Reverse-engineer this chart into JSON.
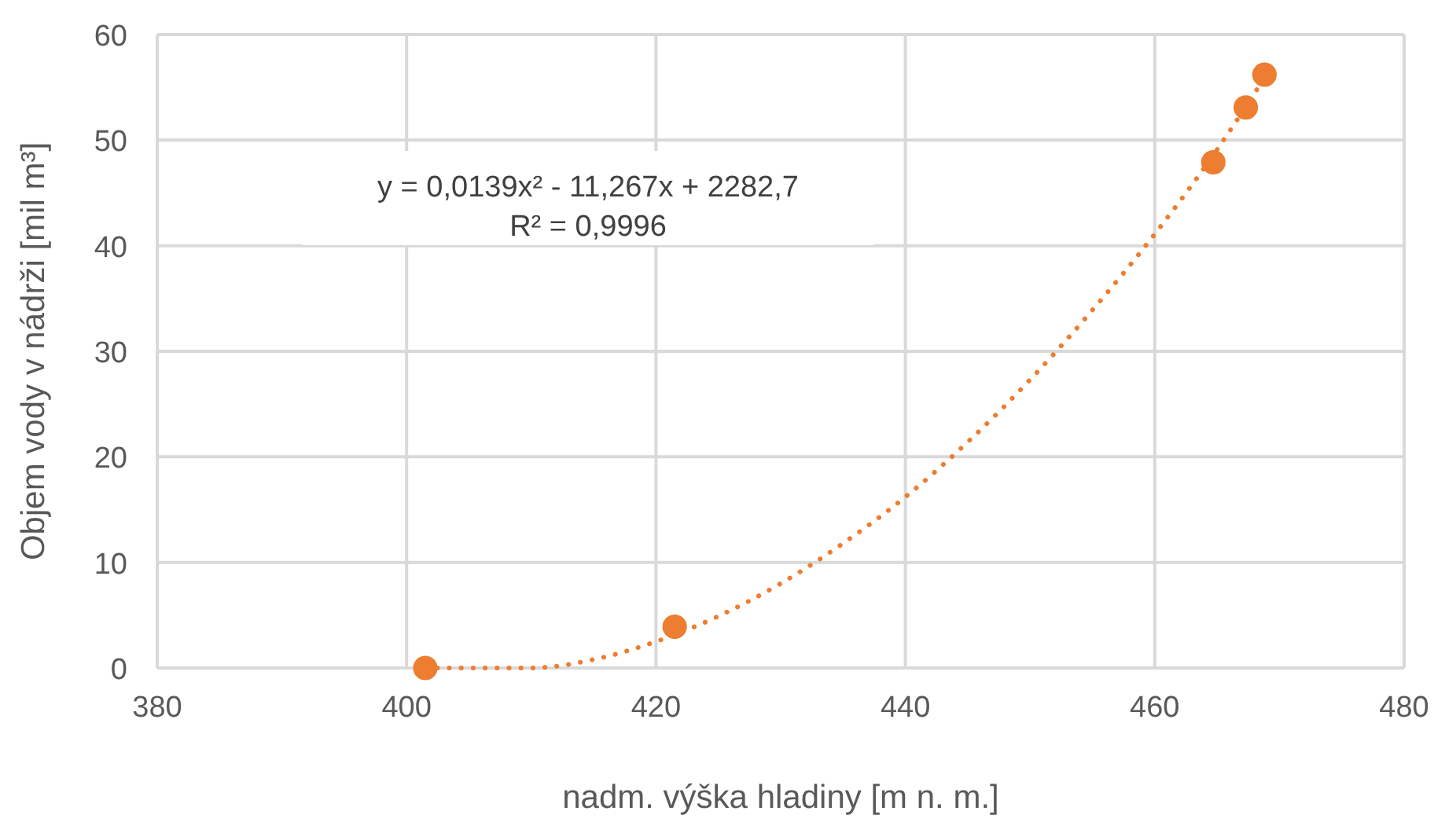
{
  "chart_data": {
    "type": "scatter",
    "xlabel": "nadm. výška hladiny [m n. m.]",
    "ylabel": "Objem vody v nádrži [mil m³]",
    "xlim": [
      380,
      480
    ],
    "xticks": [
      380,
      400,
      420,
      440,
      460,
      480
    ],
    "ylim": [
      0,
      60
    ],
    "yticks": [
      0,
      10,
      20,
      30,
      40,
      50,
      60
    ],
    "grid": true,
    "marker": "circle",
    "annotations": [
      "y = 0,0139x² - 11,267x + 2282,7\nR² = 0,9996"
    ],
    "series": [
      {
        "type": "line",
        "line_style": "dotted",
        "marker": "none",
        "color": "#ed7d31",
        "x": [
          401.5,
          405,
          410,
          415,
          420,
          425,
          430,
          435,
          440,
          445,
          450,
          455,
          460,
          465,
          468.8
        ],
        "values": [
          0,
          0,
          0,
          0.8,
          2.5,
          4.9,
          8.0,
          11.8,
          16.2,
          21.4,
          27.3,
          33.9,
          41.1,
          49.1,
          55.9
        ]
      },
      {
        "color": "#ed7d31",
        "x": [
          401.5,
          421.5,
          464.7,
          467.3,
          468.8
        ],
        "values": [
          0,
          3.9,
          47.9,
          53.1,
          56.2
        ]
      }
    ]
  }
}
